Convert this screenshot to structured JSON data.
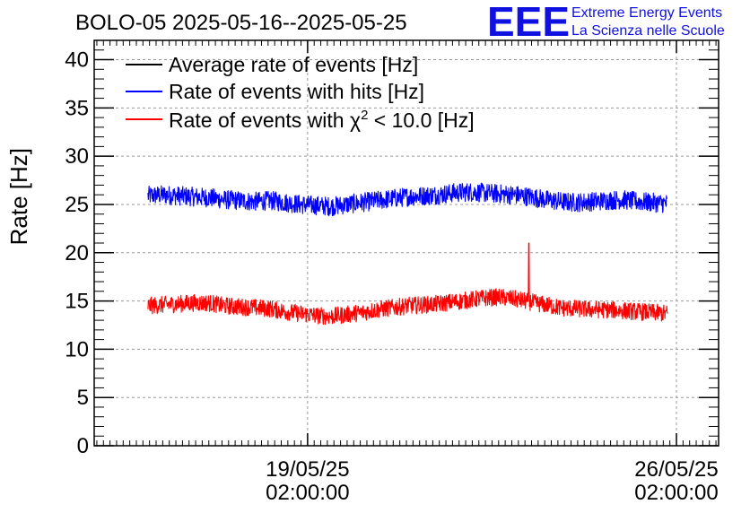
{
  "chart_data": {
    "type": "line",
    "title": "BOLO-05 2025-05-16--2025-05-25",
    "ylabel": "Rate [Hz]",
    "xlabel": "",
    "ylim": [
      0,
      42
    ],
    "yticks": [
      0,
      5,
      10,
      15,
      20,
      25,
      30,
      35,
      40
    ],
    "x_ticks": [
      {
        "line1": "19/05/25",
        "line2": "02:00:00",
        "day": 3.0
      },
      {
        "line1": "26/05/25",
        "line2": "02:00:00",
        "day": 10.0
      }
    ],
    "x_range_days": [
      -1.05,
      10.8
    ],
    "data_range_days": [
      -0.03,
      9.83
    ],
    "grid": true,
    "legend_position": "top-left",
    "series": [
      {
        "name": "Average rate of events [Hz]",
        "color": "#000000",
        "visible_data": false,
        "spread": 0,
        "values": []
      },
      {
        "name": "Rate of events with hits [Hz]",
        "color": "#0000ff",
        "spread": 1.0,
        "values": [
          25.9,
          26.0,
          25.9,
          25.8,
          25.7,
          25.5,
          25.4,
          25.3,
          25.4,
          25.2,
          25.0,
          24.9,
          24.8,
          25.0,
          25.2,
          25.4,
          25.6,
          25.8,
          25.9,
          26.0,
          26.2,
          26.3,
          26.2,
          26.1,
          26.0,
          25.8,
          25.5,
          25.3,
          25.2,
          25.3,
          25.4,
          25.5,
          25.3,
          25.2,
          25.1
        ]
      },
      {
        "name": "Rate of events with χ² < 10.0 [Hz]",
        "name_prefix": "Rate of events with χ",
        "name_sup": "2",
        "name_suffix": " < 10.0 [Hz]",
        "color": "#ff0000",
        "spread": 0.9,
        "values": [
          14.5,
          14.6,
          14.7,
          14.8,
          14.8,
          14.5,
          14.4,
          14.3,
          14.2,
          13.9,
          13.7,
          13.5,
          13.4,
          13.6,
          13.8,
          14.1,
          14.3,
          14.5,
          14.6,
          14.7,
          14.9,
          15.1,
          15.3,
          15.4,
          15.2,
          14.9,
          14.6,
          14.3,
          14.2,
          14.1,
          14.1,
          14.0,
          13.9,
          13.8,
          13.7
        ],
        "spike": {
          "day": 7.2,
          "value": 21.0
        }
      }
    ]
  },
  "logo": {
    "mark": "EEE",
    "line1": "Extreme Energy Events",
    "line2": "La Scienza nelle Scuole"
  }
}
